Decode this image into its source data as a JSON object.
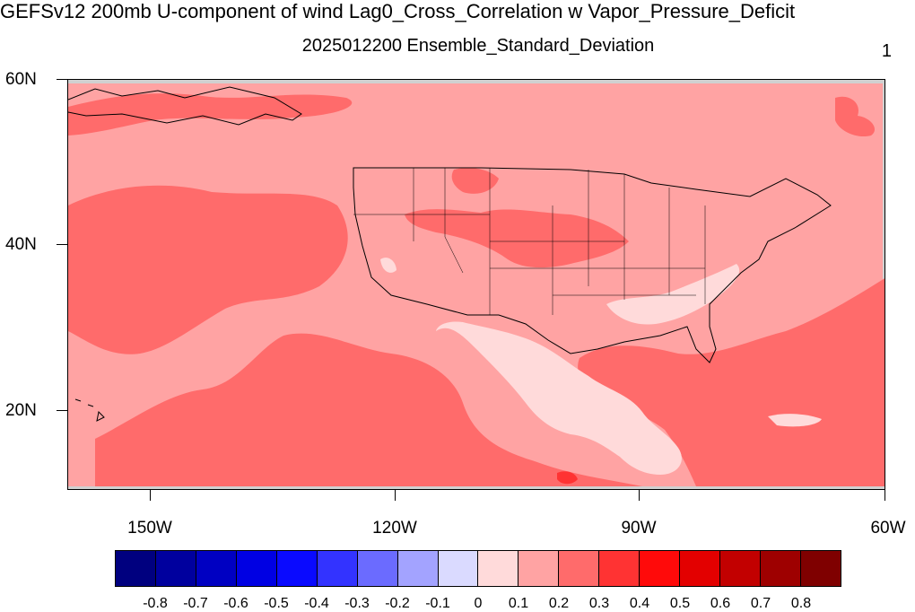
{
  "title": "GEFSv12 200mb U-component of wind Lag0_Cross_Correlation w Vapor_Pressure_Deficit",
  "subtitle": "2025012200 Ensemble_Standard_Deviation",
  "panel_number": "1",
  "lat_labels": [
    "60N",
    "40N",
    "20N"
  ],
  "lon_labels": [
    "150W",
    "120W",
    "90W",
    "60W"
  ],
  "colorbar": {
    "colors": [
      "#00007f",
      "#00009e",
      "#0000c2",
      "#0000e3",
      "#0a0aff",
      "#3333ff",
      "#6b6bff",
      "#a3a3ff",
      "#dadaff",
      "#ffdada",
      "#ffa3a3",
      "#ff6b6b",
      "#ff3333",
      "#ff0a0a",
      "#e30000",
      "#c20000",
      "#9e0000",
      "#7f0000"
    ],
    "labels": [
      "-0.8",
      "-0.7",
      "-0.6",
      "-0.5",
      "-0.4",
      "-0.3",
      "-0.2",
      "-0.1",
      "0",
      "0.1",
      "0.2",
      "0.3",
      "0.4",
      "0.5",
      "0.6",
      "0.7",
      "0.8"
    ]
  },
  "map": {
    "background_level": "0.1-0.2",
    "land_color": "#cccccc"
  }
}
